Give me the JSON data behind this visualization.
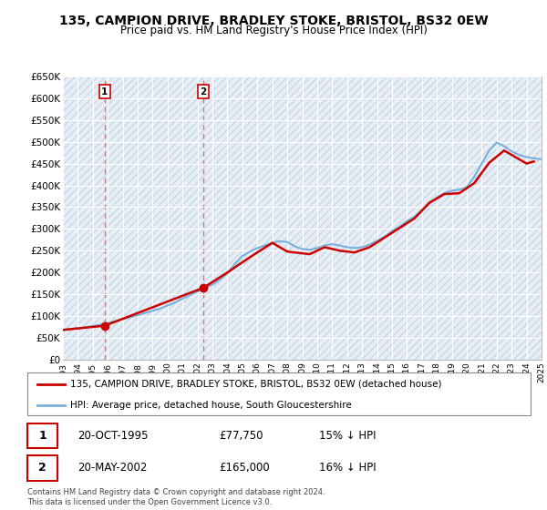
{
  "title": "135, CAMPION DRIVE, BRADLEY STOKE, BRISTOL, BS32 0EW",
  "subtitle": "Price paid vs. HM Land Registry's House Price Index (HPI)",
  "title_fontsize": 10,
  "subtitle_fontsize": 8.5,
  "background_color": "#ffffff",
  "plot_bg_color": "#e8eef5",
  "grid_color": "#ffffff",
  "ylim": [
    0,
    650000
  ],
  "yticks": [
    0,
    50000,
    100000,
    150000,
    200000,
    250000,
    300000,
    350000,
    400000,
    450000,
    500000,
    550000,
    600000,
    650000
  ],
  "ytick_labels": [
    "£0",
    "£50K",
    "£100K",
    "£150K",
    "£200K",
    "£250K",
    "£300K",
    "£350K",
    "£400K",
    "£450K",
    "£500K",
    "£550K",
    "£600K",
    "£650K"
  ],
  "hpi_line_color": "#7aafdb",
  "price_line_color": "#cc0000",
  "marker_color": "#cc0000",
  "dashed_color": "#ff6666",
  "legend_label_price": "135, CAMPION DRIVE, BRADLEY STOKE, BRISTOL, BS32 0EW (detached house)",
  "legend_label_hpi": "HPI: Average price, detached house, South Gloucestershire",
  "transaction1_date": "20-OCT-1995",
  "transaction1_price": "£77,750",
  "transaction1_hpi": "15% ↓ HPI",
  "transaction2_date": "20-MAY-2002",
  "transaction2_price": "£165,000",
  "transaction2_hpi": "16% ↓ HPI",
  "footnote": "Contains HM Land Registry data © Crown copyright and database right 2024.\nThis data is licensed under the Open Government Licence v3.0.",
  "hpi_years": [
    1993.0,
    1993.5,
    1994.0,
    1994.5,
    1995.0,
    1995.5,
    1996.0,
    1996.5,
    1997.0,
    1997.5,
    1998.0,
    1998.5,
    1999.0,
    1999.5,
    2000.0,
    2000.5,
    2001.0,
    2001.5,
    2002.0,
    2002.5,
    2003.0,
    2003.5,
    2004.0,
    2004.5,
    2005.0,
    2005.5,
    2006.0,
    2006.5,
    2007.0,
    2007.5,
    2008.0,
    2008.5,
    2009.0,
    2009.5,
    2010.0,
    2010.5,
    2011.0,
    2011.5,
    2012.0,
    2012.5,
    2013.0,
    2013.5,
    2014.0,
    2014.5,
    2015.0,
    2015.5,
    2016.0,
    2016.5,
    2017.0,
    2017.5,
    2018.0,
    2018.5,
    2019.0,
    2019.5,
    2020.0,
    2020.5,
    2021.0,
    2021.5,
    2022.0,
    2022.5,
    2023.0,
    2023.5,
    2024.0,
    2024.5,
    2025.0
  ],
  "hpi_values": [
    68000,
    70000,
    72000,
    74000,
    77000,
    80000,
    84000,
    88000,
    93000,
    97000,
    102000,
    107000,
    112000,
    117000,
    124000,
    131000,
    140000,
    148000,
    156000,
    164000,
    172000,
    184000,
    198000,
    220000,
    238000,
    248000,
    256000,
    262000,
    268000,
    272000,
    270000,
    260000,
    254000,
    252000,
    256000,
    262000,
    265000,
    262000,
    258000,
    256000,
    258000,
    264000,
    272000,
    282000,
    295000,
    305000,
    318000,
    328000,
    342000,
    358000,
    372000,
    382000,
    388000,
    390000,
    396000,
    420000,
    450000,
    480000,
    498000,
    490000,
    478000,
    470000,
    465000,
    462000,
    460000
  ],
  "price_years": [
    1993.0,
    1995.8,
    2002.4,
    2004.0,
    2005.5,
    2007.0,
    2008.0,
    2009.5,
    2010.5,
    2011.5,
    2012.5,
    2013.5,
    2014.5,
    2015.5,
    2016.5,
    2017.5,
    2018.5,
    2019.5,
    2020.5,
    2021.5,
    2022.5,
    2023.5,
    2024.0,
    2024.5
  ],
  "price_values": [
    68000,
    77750,
    165000,
    200000,
    235000,
    268000,
    248000,
    242000,
    258000,
    250000,
    246000,
    258000,
    280000,
    302000,
    324000,
    360000,
    380000,
    382000,
    405000,
    452000,
    480000,
    460000,
    450000,
    455000
  ],
  "transaction1_x": 1995.8,
  "transaction1_y": 77750,
  "transaction2_x": 2002.4,
  "transaction2_y": 165000,
  "xtick_years": [
    1993,
    1994,
    1995,
    1996,
    1997,
    1998,
    1999,
    2000,
    2001,
    2002,
    2003,
    2004,
    2005,
    2006,
    2007,
    2008,
    2009,
    2010,
    2011,
    2012,
    2013,
    2014,
    2015,
    2016,
    2017,
    2018,
    2019,
    2020,
    2021,
    2022,
    2023,
    2024,
    2025
  ]
}
